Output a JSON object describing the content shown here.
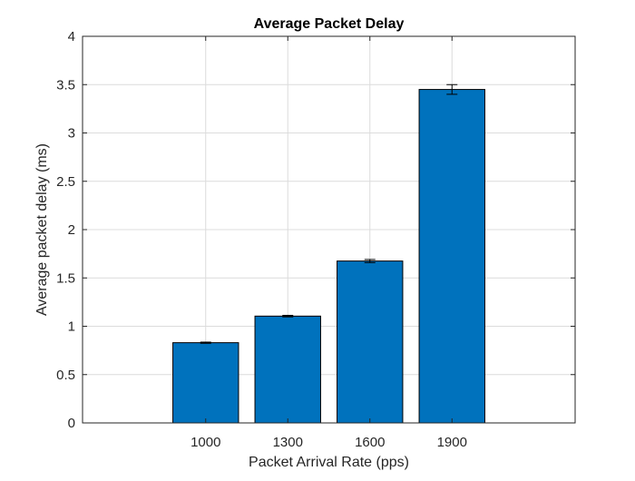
{
  "chart_data": {
    "type": "bar",
    "title": "Average Packet Delay",
    "xlabel": "Packet Arrival Rate (pps)",
    "ylabel": "Average packet delay (ms)",
    "categories": [
      "1000",
      "1300",
      "1600",
      "1900"
    ],
    "values": [
      0.83,
      1.105,
      1.675,
      3.45
    ],
    "error": [
      0.006,
      0.008,
      0.016,
      0.05
    ],
    "ylim": [
      0,
      4
    ],
    "yticks": [
      0,
      0.5,
      1,
      1.5,
      2,
      2.5,
      3,
      3.5,
      4
    ],
    "ytick_labels": [
      "0",
      "0.5",
      "1",
      "1.5",
      "2",
      "2.5",
      "3",
      "3.5",
      "4"
    ],
    "grid": true,
    "bar_color": "#0072BD",
    "bar_edge_color": "#000000",
    "error_bar_color": "#000000"
  }
}
